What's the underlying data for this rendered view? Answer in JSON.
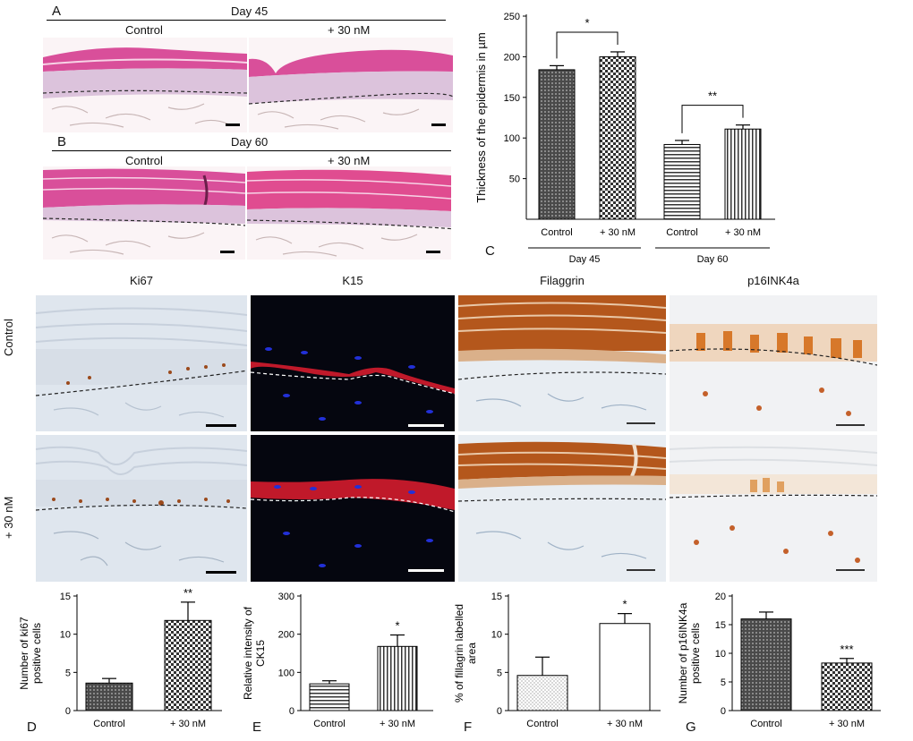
{
  "figure": {
    "panel_letters": [
      "A",
      "B",
      "C",
      "D",
      "E",
      "F",
      "G"
    ],
    "panelA": {
      "day": "Day 45",
      "left": "Control",
      "right": "+ 30 nM"
    },
    "panelB": {
      "day": "Day 60",
      "left": "Control",
      "right": "+ 30 nM"
    },
    "stain_columns": [
      "Ki67",
      "K15",
      "Filaggrin",
      "p16INK4a"
    ],
    "row_labels": [
      "Control",
      "+ 30 nM"
    ],
    "colors": {
      "bar_dark": "#555555",
      "stroke": "#000000",
      "he_pink": "#d94f9a",
      "ihc_blue": "#dfe6ee",
      "fluor_bg": "#05060f",
      "dab_brown": "#b4571c"
    }
  },
  "chart_data": [
    {
      "id": "C",
      "type": "bar",
      "categories": [
        "Control",
        "+ 30 nM",
        "Control",
        "+ 30 nM"
      ],
      "groups": [
        "Day 45",
        "Day 60"
      ],
      "values": [
        184,
        200,
        92,
        111
      ],
      "errors": [
        5,
        6,
        5,
        5
      ],
      "ylabel": "Thickness of the epidermis in µm",
      "ylim": [
        0,
        250
      ],
      "yticks": [
        50,
        100,
        150,
        200,
        250
      ],
      "significance": [
        "*",
        "**"
      ]
    },
    {
      "id": "D",
      "type": "bar",
      "categories": [
        "Control",
        "+ 30 nM"
      ],
      "values": [
        3.6,
        11.8
      ],
      "errors": [
        0.6,
        2.4
      ],
      "ylabel": "Number  of ki67\npositive cells",
      "ylim": [
        0,
        15
      ],
      "yticks": [
        0,
        5,
        10,
        15
      ],
      "significance": "**"
    },
    {
      "id": "E",
      "type": "bar",
      "categories": [
        "Control",
        "+ 30 nM"
      ],
      "values": [
        70,
        168
      ],
      "errors": [
        8,
        30
      ],
      "ylabel": "Relative intensity of\nCK15",
      "ylim": [
        0,
        300
      ],
      "yticks": [
        0,
        100,
        200,
        300
      ],
      "significance": "*"
    },
    {
      "id": "F",
      "type": "bar",
      "categories": [
        "Control",
        "+ 30 nM"
      ],
      "values": [
        4.6,
        11.4
      ],
      "errors": [
        2.4,
        1.3
      ],
      "ylabel": "% of fillagrin labelled\narea",
      "ylim": [
        0,
        15
      ],
      "yticks": [
        0,
        5,
        10,
        15
      ],
      "significance": "*"
    },
    {
      "id": "G",
      "type": "bar",
      "categories": [
        "Control",
        "+ 30 nM"
      ],
      "values": [
        16,
        8.3
      ],
      "errors": [
        1.2,
        0.8
      ],
      "ylabel": "Number  of p16INK4a\npositive cells",
      "ylim": [
        0,
        20
      ],
      "yticks": [
        0,
        5,
        10,
        15,
        20
      ],
      "significance": "***"
    }
  ]
}
